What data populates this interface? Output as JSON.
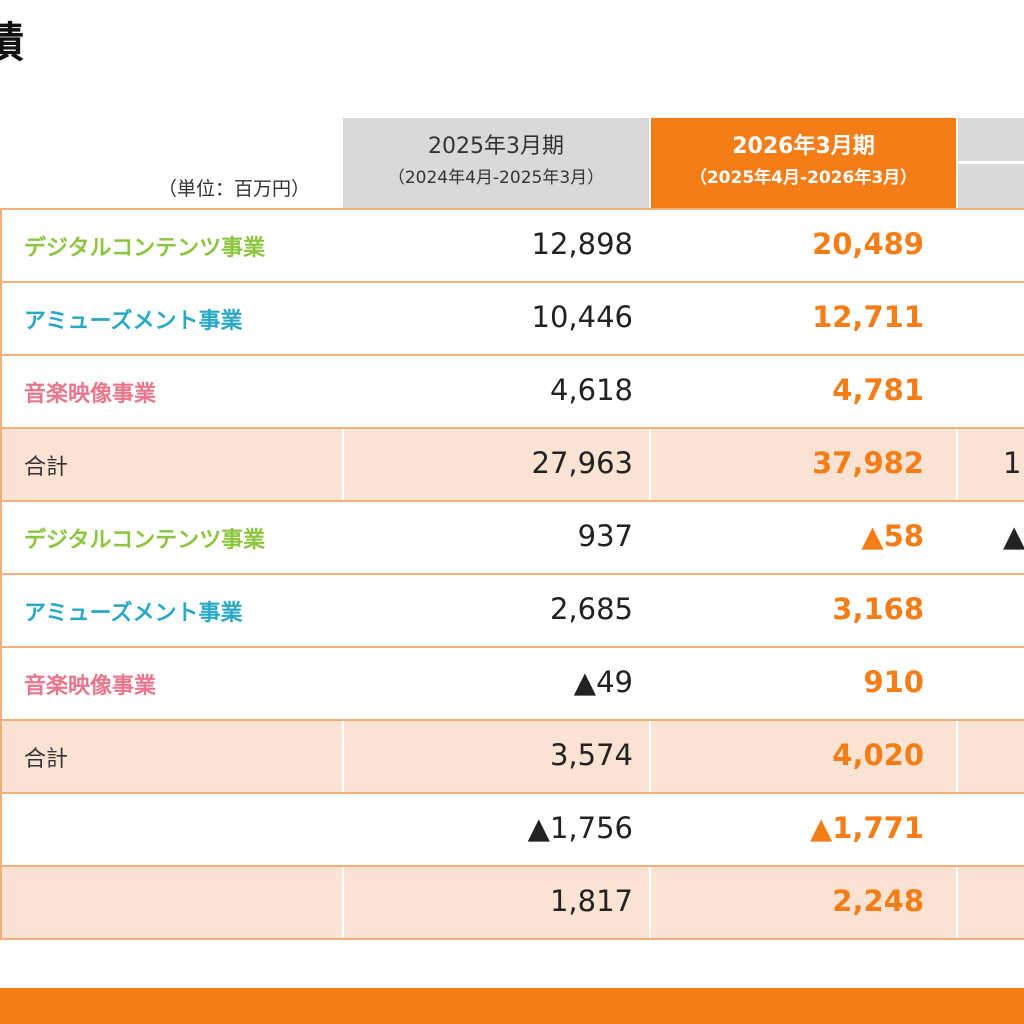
{
  "page": {
    "title": "績",
    "unit": "（単位：百万円）"
  },
  "header": {
    "prev_year": "2025年3月期",
    "prev_period": "（2024年4月-2025年3月）",
    "cur_year": "2026年3月期",
    "cur_period": "（2025年4月-2026年3月）"
  },
  "colors": {
    "digital": "#8cc63f",
    "amusement": "#29a8c8",
    "music": "#e8768c",
    "accent": "#f47d17",
    "shade": "#fae3d3",
    "header_gray": "#d9d9d9"
  },
  "rows": [
    {
      "label": "デジタルコンテンツ事業",
      "prev": "12,898",
      "cur": "20,489",
      "next": ""
    },
    {
      "label": "アミューズメント事業",
      "prev": "10,446",
      "cur": "12,711",
      "next": ""
    },
    {
      "label": "音楽映像事業",
      "prev": "4,618",
      "cur": "4,781",
      "next": ""
    },
    {
      "label": "合計",
      "prev": "27,963",
      "cur": "37,982",
      "next": "1"
    },
    {
      "label": "デジタルコンテンツ事業",
      "prev": "937",
      "cur": "▲58",
      "next": "▲"
    },
    {
      "label": "アミューズメント事業",
      "prev": "2,685",
      "cur": "3,168",
      "next": ""
    },
    {
      "label": "音楽映像事業",
      "prev": "▲49",
      "cur": "910",
      "next": ""
    },
    {
      "label": "合計",
      "prev": "3,574",
      "cur": "4,020",
      "next": ""
    },
    {
      "label": "",
      "prev": "▲1,756",
      "cur": "▲1,771",
      "next": ""
    },
    {
      "label": "",
      "prev": "1,817",
      "cur": "2,248",
      "next": ""
    }
  ]
}
